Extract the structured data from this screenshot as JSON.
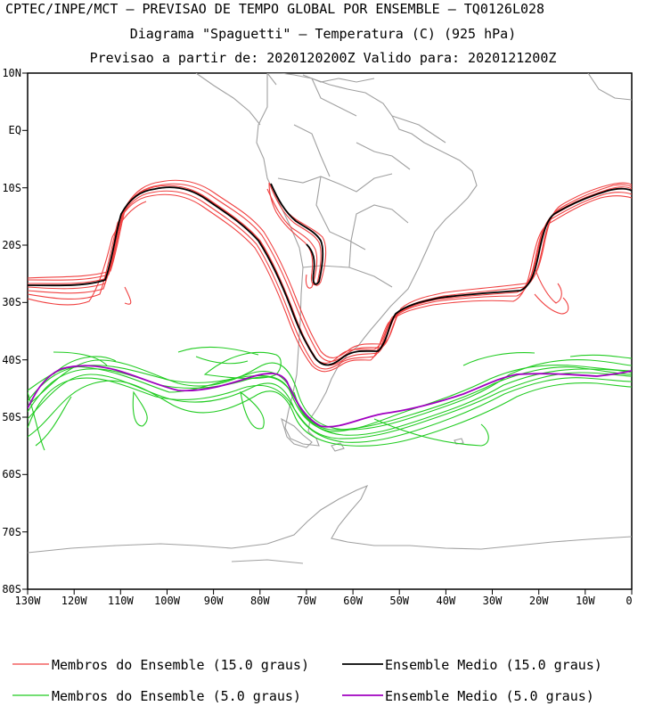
{
  "header": {
    "line1": "CPTEC/INPE/MCT — PREVISAO DE TEMPO GLOBAL POR ENSEMBLE — TQ0126L028",
    "line2": "Diagrama \"Spaguetti\" — Temperatura (C) (925 hPa)",
    "line3": "Previsao a partir de: 2020120200Z  Valido para: 2020121200Z"
  },
  "axes": {
    "lat_labels": [
      "10N",
      "EQ",
      "10S",
      "20S",
      "30S",
      "40S",
      "50S",
      "60S",
      "70S",
      "80S"
    ],
    "lon_labels": [
      "130W",
      "120W",
      "110W",
      "100W",
      "90W",
      "80W",
      "70W",
      "60W",
      "50W",
      "40W",
      "30W",
      "20W",
      "10W",
      "0"
    ]
  },
  "legend": {
    "red_members": "Membros do Ensemble (15.0 graus)",
    "black_mean": "Ensemble Medio (15.0 graus)",
    "green_members": "Membros do Ensemble (5.0 graus)",
    "purple_mean": "Ensemble Medio (5.0 graus)"
  },
  "colors": {
    "red": "#f04040",
    "black": "#000000",
    "green": "#22cc22",
    "purple": "#a000c0",
    "land": "#a0a0a0"
  },
  "chart_data": {
    "type": "map",
    "projection": "lat-lon",
    "lon_range": [
      -130,
      0
    ],
    "lat_range": [
      -80,
      10
    ],
    "series": [
      {
        "name": "Ensemble Medio (15.0 graus)",
        "points": [
          [
            -130,
            -27
          ],
          [
            -115,
            -27
          ],
          [
            -110,
            -15
          ],
          [
            -105,
            -11
          ],
          [
            -98,
            -10
          ],
          [
            -90,
            -13
          ],
          [
            -82,
            -18
          ],
          [
            -78,
            -24
          ],
          [
            -75,
            -31
          ],
          [
            -73,
            -35
          ],
          [
            -71,
            -41
          ],
          [
            -69,
            -42
          ],
          [
            -66,
            -40
          ],
          [
            -62,
            -38
          ],
          [
            -56,
            -38
          ],
          [
            -53,
            -33
          ],
          [
            -48,
            -31
          ],
          [
            -40,
            -30
          ],
          [
            -30,
            -29
          ],
          [
            -24,
            -28
          ],
          [
            -22,
            -22
          ],
          [
            -20,
            -16
          ],
          [
            -15,
            -13
          ],
          [
            -10,
            -11
          ],
          [
            0,
            -10.5
          ]
        ]
      },
      {
        "name": "Ensemble Medio (5.0 graus)",
        "points": [
          [
            -130,
            -48
          ],
          [
            -128,
            -44
          ],
          [
            -122,
            -41
          ],
          [
            -115,
            -41
          ],
          [
            -105,
            -43
          ],
          [
            -95,
            -45
          ],
          [
            -85,
            -44
          ],
          [
            -78,
            -43
          ],
          [
            -75,
            -45
          ],
          [
            -72,
            -49
          ],
          [
            -68,
            -51
          ],
          [
            -62,
            -50
          ],
          [
            -52,
            -49
          ],
          [
            -45,
            -48
          ],
          [
            -38,
            -45
          ],
          [
            -30,
            -42
          ],
          [
            -20,
            -42
          ],
          [
            -10,
            -42.5
          ],
          [
            0,
            -42
          ]
        ]
      }
    ]
  }
}
